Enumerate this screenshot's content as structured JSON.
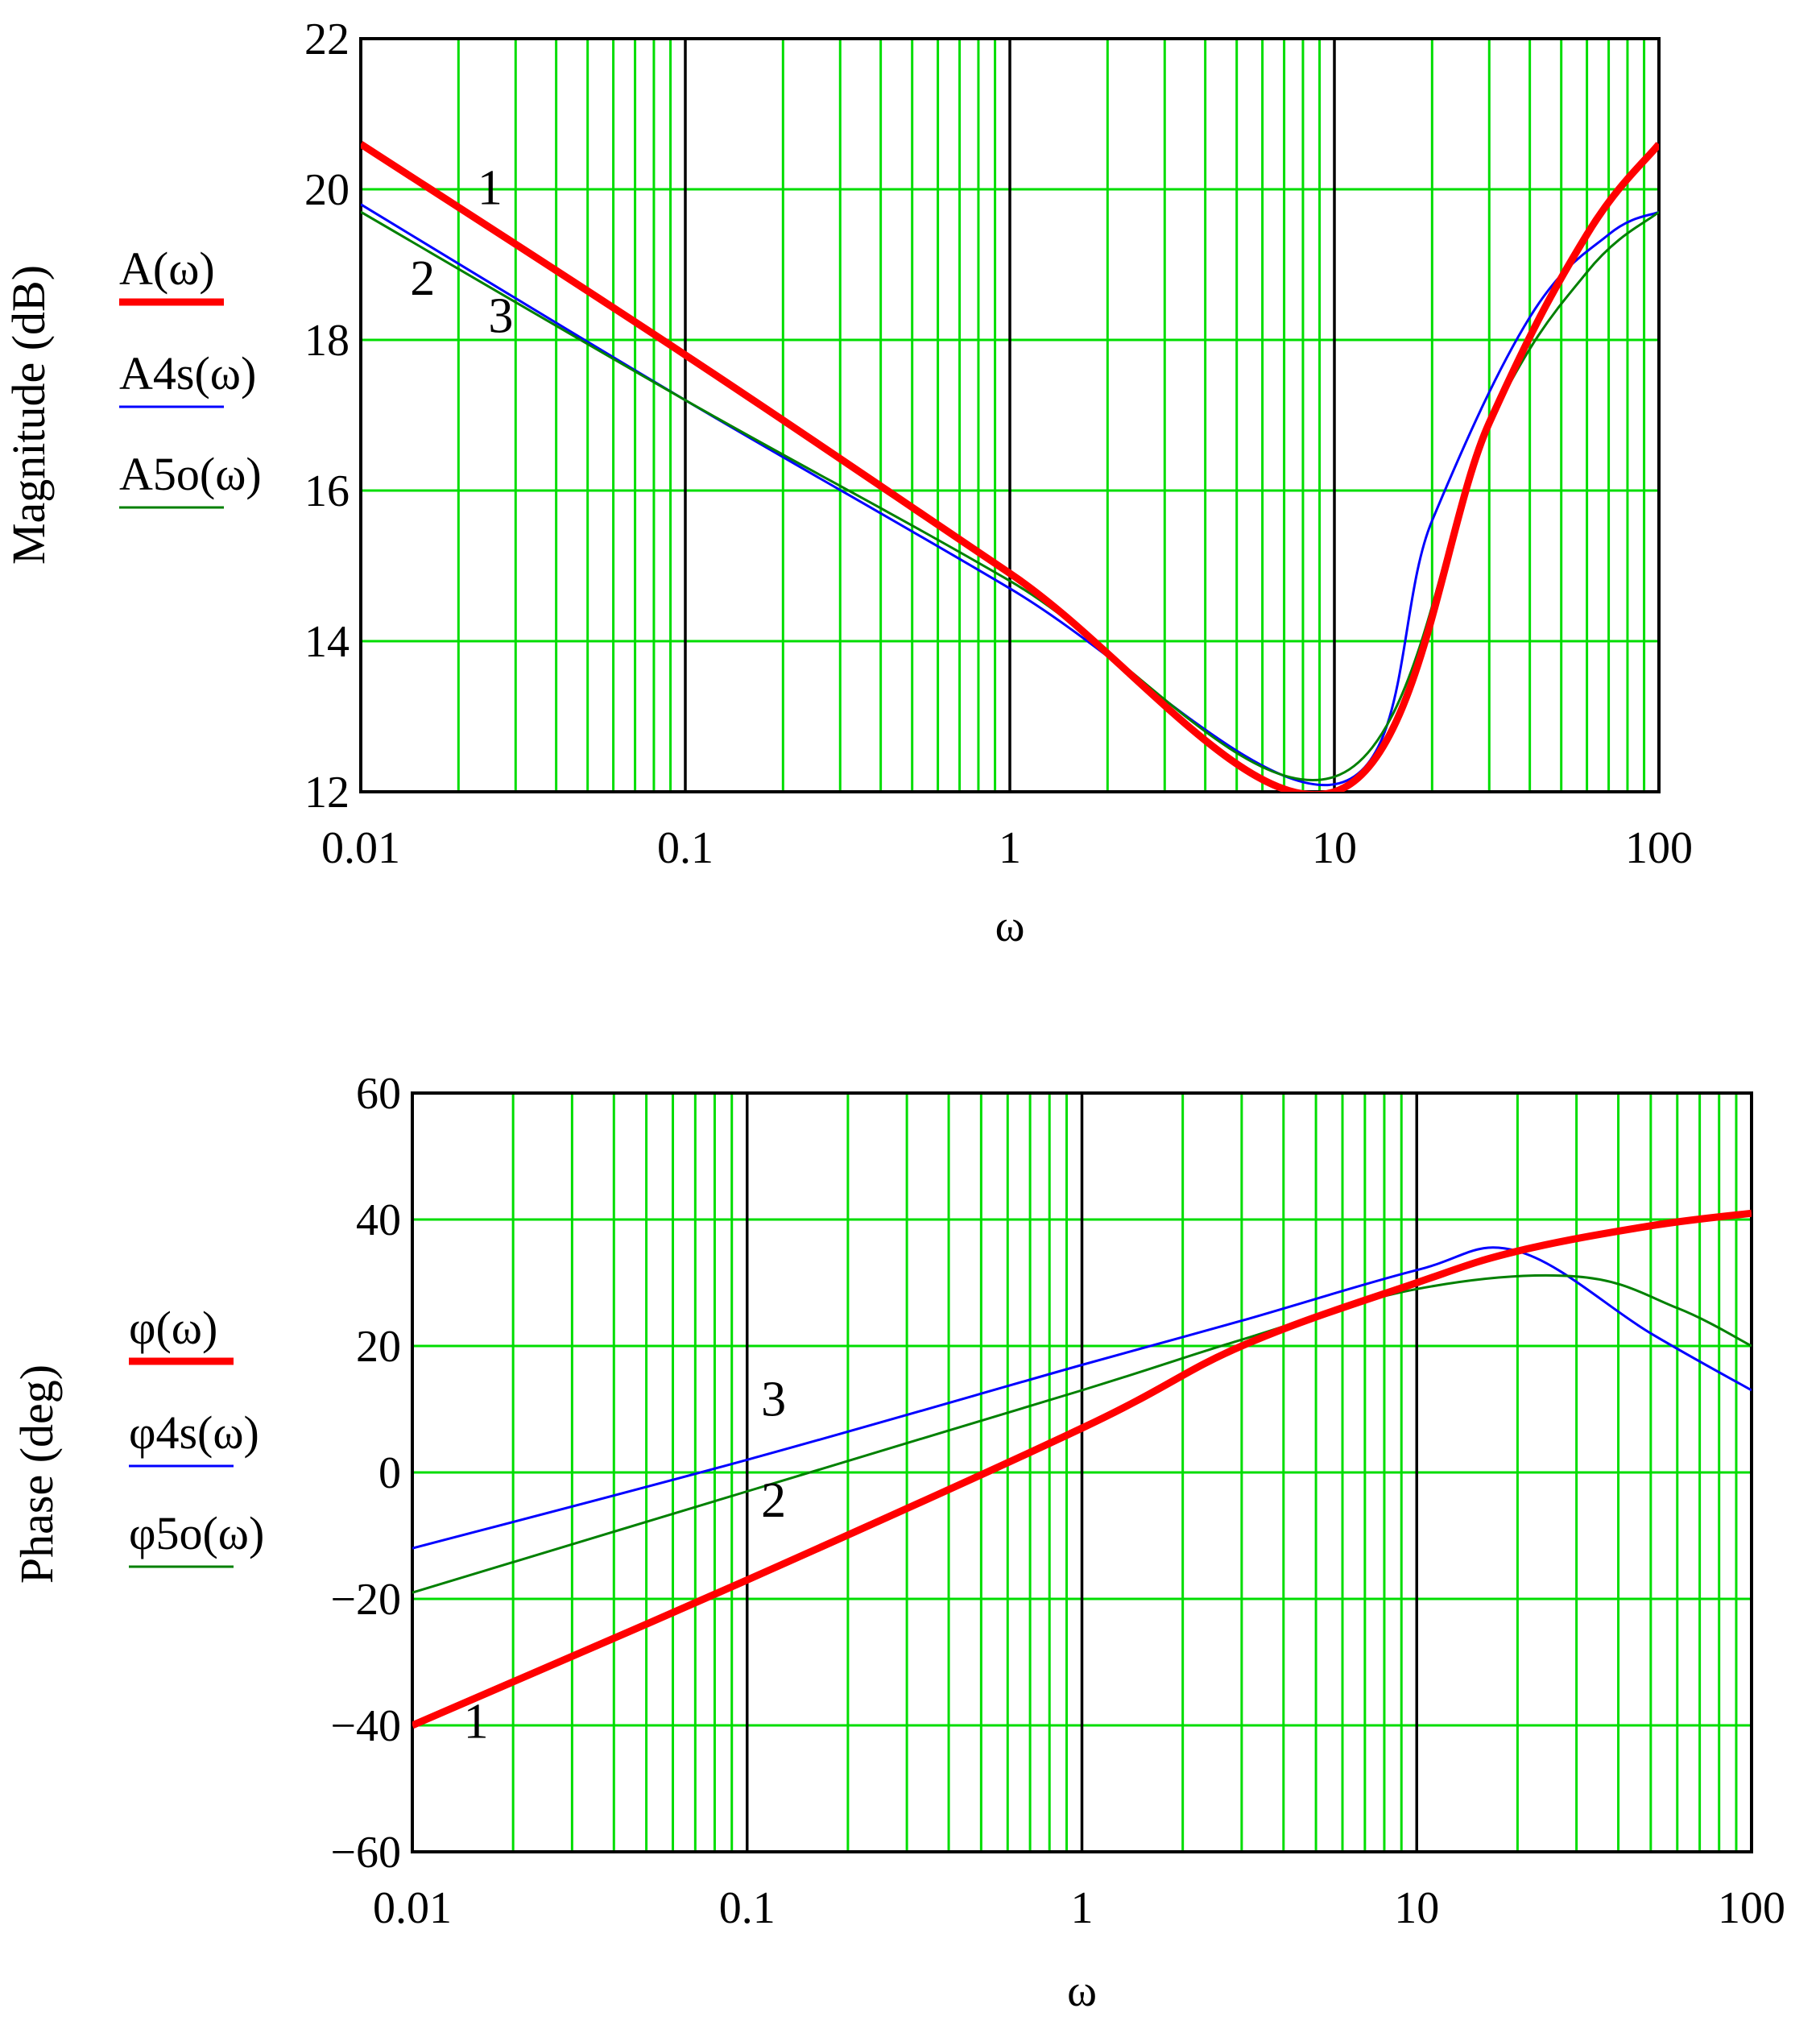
{
  "chart_data": [
    {
      "type": "line",
      "xscale": "log",
      "xlim": [
        0.01,
        100
      ],
      "ylim": [
        12,
        22
      ],
      "xticks": [
        "0.01",
        "0.1",
        "1",
        "10",
        "100"
      ],
      "yticks": [
        "12",
        "14",
        "16",
        "18",
        "20",
        "22"
      ],
      "xlabel": "ω",
      "ylabel": "Magnitude (dB)",
      "grid": true,
      "legend_position": "left",
      "series": [
        {
          "name": "A(ω)",
          "color": "#ff0000",
          "width": "thick",
          "x": [
            0.01,
            0.1,
            1,
            10,
            30,
            60,
            100
          ],
          "y": [
            20.6,
            17.8,
            14.9,
            12.0,
            16.9,
            19.4,
            20.6
          ]
        },
        {
          "name": "A4s(ω)",
          "color": "#0000ff",
          "width": "thin",
          "x": [
            0.01,
            0.1,
            1,
            10,
            20,
            40,
            70,
            100
          ],
          "y": [
            19.8,
            17.2,
            14.7,
            12.1,
            15.6,
            18.3,
            19.4,
            19.7
          ]
        },
        {
          "name": "A5o(ω)",
          "color": "#008000",
          "width": "thin",
          "x": [
            0.01,
            0.1,
            1,
            10,
            30,
            60,
            100
          ],
          "y": [
            19.7,
            17.2,
            14.8,
            12.2,
            16.9,
            18.9,
            19.7
          ]
        }
      ],
      "annotations": [
        {
          "text": "1",
          "x": 0.025,
          "y": 19.8
        },
        {
          "text": "2",
          "x": 0.0155,
          "y": 18.6
        },
        {
          "text": "3",
          "x": 0.027,
          "y": 18.1
        }
      ]
    },
    {
      "type": "line",
      "xscale": "log",
      "xlim": [
        0.01,
        100
      ],
      "ylim": [
        -60,
        60
      ],
      "xticks": [
        "0.01",
        "0.1",
        "1",
        "10",
        "100"
      ],
      "yticks": [
        "−60",
        "−40",
        "−20",
        "0",
        "20",
        "40",
        "60"
      ],
      "xlabel": "ω",
      "ylabel": "Phase (deg)",
      "grid": true,
      "legend_position": "left",
      "series": [
        {
          "name": "φ(ω)",
          "color": "#ff0000",
          "width": "thick",
          "x": [
            0.01,
            0.1,
            1,
            3,
            10,
            20,
            50,
            100
          ],
          "y": [
            -40,
            -17,
            7,
            20,
            30,
            35,
            39,
            41
          ]
        },
        {
          "name": "φ4s(ω)",
          "color": "#0000ff",
          "width": "thin",
          "x": [
            0.01,
            0.1,
            1,
            3,
            10,
            20,
            50,
            100
          ],
          "y": [
            -12,
            2,
            17,
            24,
            32,
            35,
            22,
            13
          ]
        },
        {
          "name": "φ5o(ω)",
          "color": "#008000",
          "width": "thin",
          "x": [
            0.01,
            0.1,
            1,
            3,
            10,
            30,
            60,
            100
          ],
          "y": [
            -19,
            -3,
            13,
            21,
            29,
            31,
            26,
            20
          ]
        }
      ],
      "annotations": [
        {
          "text": "3",
          "x": 0.12,
          "y": 9
        },
        {
          "text": "2",
          "x": 0.12,
          "y": -7
        },
        {
          "text": "1",
          "x": 0.0155,
          "y": -42
        }
      ]
    }
  ]
}
